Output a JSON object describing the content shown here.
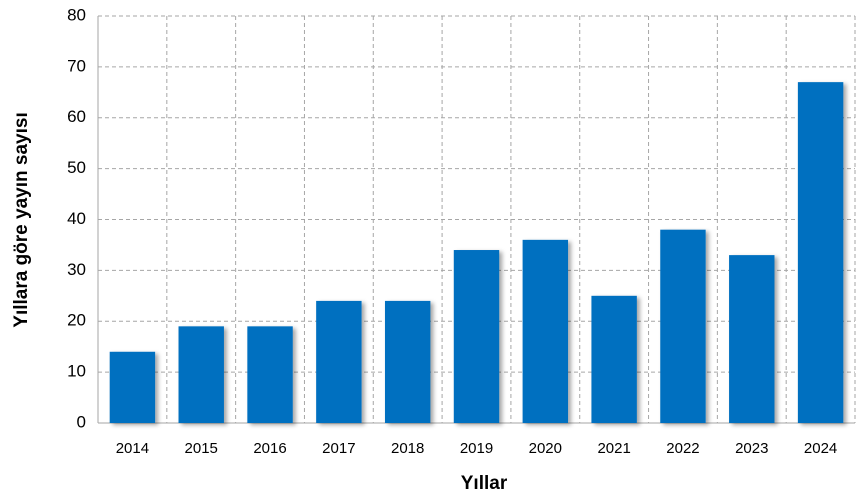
{
  "chart_data": {
    "type": "bar",
    "x_label": "Yıllar",
    "y_label": "Yıllara göre yayın sayısı",
    "categories": [
      "2014",
      "2015",
      "2016",
      "2017",
      "2018",
      "2019",
      "2020",
      "2021",
      "2022",
      "2023",
      "2024"
    ],
    "values": [
      14,
      19,
      19,
      24,
      24,
      34,
      36,
      25,
      38,
      33,
      67
    ],
    "color": "#0070c0",
    "ylim": [
      0,
      80
    ],
    "yticks": [
      0,
      10,
      20,
      30,
      40,
      50,
      60,
      70,
      80
    ],
    "grid": true
  }
}
